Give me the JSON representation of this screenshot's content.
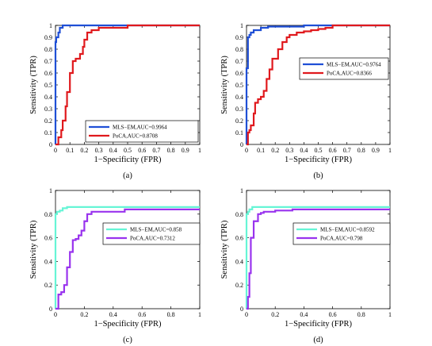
{
  "chart_data": [
    {
      "type": "line",
      "caption": "(a)",
      "xlabel": "1−Specificity (FPR)",
      "ylabel": "Sensitivity (TPR)",
      "xlim": [
        0,
        1
      ],
      "ylim": [
        0,
        1
      ],
      "xticks": [
        "0",
        "0.1",
        "0.2",
        "0.3",
        "0.4",
        "0.5",
        "0.6",
        "0.7",
        "0.8",
        "0.9",
        "1"
      ],
      "yticks": [
        "0",
        "0.1",
        "0.2",
        "0.3",
        "0.4",
        "0.5",
        "0.6",
        "0.7",
        "0.8",
        "0.9",
        "1"
      ],
      "grid": false,
      "legend_position": "bottom-right",
      "series": [
        {
          "name": "MLS−EM,AUC=0.9964",
          "color": "#1f4fd6",
          "x": [
            0,
            0,
            0.005,
            0.005,
            0.02,
            0.02,
            0.03,
            0.03,
            0.05,
            0.05,
            1
          ],
          "y": [
            0,
            0.86,
            0.86,
            0.9,
            0.9,
            0.94,
            0.94,
            0.98,
            0.98,
            1,
            1
          ]
        },
        {
          "name": "PoCA,AUC=0.8708",
          "color": "#e0191d",
          "x": [
            0,
            0.02,
            0.02,
            0.04,
            0.04,
            0.05,
            0.05,
            0.07,
            0.07,
            0.08,
            0.08,
            0.1,
            0.1,
            0.12,
            0.12,
            0.14,
            0.14,
            0.17,
            0.17,
            0.19,
            0.19,
            0.2,
            0.2,
            0.22,
            0.22,
            0.25,
            0.25,
            0.3,
            0.3,
            0.4,
            0.4,
            0.5,
            0.5,
            1
          ],
          "y": [
            0,
            0,
            0.06,
            0.06,
            0.12,
            0.12,
            0.2,
            0.2,
            0.32,
            0.32,
            0.44,
            0.44,
            0.6,
            0.6,
            0.7,
            0.7,
            0.72,
            0.72,
            0.76,
            0.76,
            0.82,
            0.82,
            0.88,
            0.88,
            0.94,
            0.94,
            0.96,
            0.96,
            0.98,
            0.98,
            0.98,
            0.98,
            1,
            1
          ]
        }
      ]
    },
    {
      "type": "line",
      "caption": "(b)",
      "xlabel": "1−Specificity (FPR)",
      "ylabel": "Sensitivity (TPR)",
      "xlim": [
        0,
        1
      ],
      "ylim": [
        0,
        1
      ],
      "xticks": [
        "0",
        "0.1",
        "0.2",
        "0.3",
        "0.4",
        "0.5",
        "0.6",
        "0.7",
        "0.8",
        "0.9",
        "1"
      ],
      "yticks": [
        "0",
        "0.1",
        "0.2",
        "0.3",
        "0.4",
        "0.5",
        "0.6",
        "0.7",
        "0.8",
        "0.9",
        "1"
      ],
      "grid": false,
      "legend_position": "top-right",
      "series": [
        {
          "name": "MLS−EM,AUC=0.9764",
          "color": "#1f4fd6",
          "x": [
            0,
            0,
            0.01,
            0.01,
            0.02,
            0.02,
            0.03,
            0.03,
            0.05,
            0.05,
            0.1,
            0.1,
            0.15,
            0.15,
            0.4,
            0.4,
            1
          ],
          "y": [
            0,
            0.64,
            0.64,
            0.9,
            0.9,
            0.92,
            0.92,
            0.94,
            0.94,
            0.96,
            0.96,
            0.98,
            0.98,
            0.99,
            0.99,
            1,
            1
          ]
        },
        {
          "name": "PoCA,AUC=0.8366",
          "color": "#e0191d",
          "x": [
            0,
            0.01,
            0.01,
            0.02,
            0.02,
            0.03,
            0.03,
            0.05,
            0.05,
            0.06,
            0.06,
            0.08,
            0.08,
            0.1,
            0.1,
            0.12,
            0.12,
            0.14,
            0.14,
            0.16,
            0.16,
            0.18,
            0.18,
            0.22,
            0.22,
            0.25,
            0.25,
            0.28,
            0.28,
            0.3,
            0.3,
            0.35,
            0.35,
            0.4,
            0.4,
            0.45,
            0.45,
            0.5,
            0.5,
            0.55,
            0.55,
            0.6,
            0.6,
            1
          ],
          "y": [
            0,
            0,
            0.1,
            0.1,
            0.12,
            0.12,
            0.16,
            0.16,
            0.26,
            0.26,
            0.35,
            0.35,
            0.38,
            0.38,
            0.4,
            0.4,
            0.45,
            0.45,
            0.55,
            0.55,
            0.63,
            0.63,
            0.72,
            0.72,
            0.8,
            0.8,
            0.86,
            0.86,
            0.9,
            0.9,
            0.92,
            0.92,
            0.94,
            0.94,
            0.95,
            0.95,
            0.96,
            0.96,
            0.97,
            0.97,
            0.98,
            0.98,
            1,
            1
          ]
        }
      ]
    },
    {
      "type": "line",
      "caption": "(c)",
      "xlabel": "1−Specificity (FPR)",
      "ylabel": "Sensitivity (TPR)",
      "xlim": [
        0,
        1
      ],
      "ylim": [
        0,
        1
      ],
      "xticks": [
        "0",
        "0.2",
        "0.4",
        "0.6",
        "0.8",
        "1"
      ],
      "yticks": [
        "0",
        "0.2",
        "0.4",
        "0.6",
        "0.8",
        "1"
      ],
      "grid": false,
      "legend_position": "center-right",
      "series": [
        {
          "name": "MLS−EM,AUC=0.858",
          "color": "#66f5d6",
          "x": [
            0,
            0,
            0.01,
            0.01,
            0.03,
            0.03,
            0.05,
            0.05,
            0.08,
            0.08,
            1
          ],
          "y": [
            0,
            0.8,
            0.8,
            0.82,
            0.82,
            0.83,
            0.83,
            0.85,
            0.85,
            0.86,
            0.86
          ]
        },
        {
          "name": "PoCA,AUC=0.7312",
          "color": "#9933ee",
          "x": [
            0,
            0.02,
            0.02,
            0.04,
            0.04,
            0.06,
            0.06,
            0.08,
            0.08,
            0.1,
            0.1,
            0.12,
            0.12,
            0.14,
            0.14,
            0.16,
            0.16,
            0.18,
            0.18,
            0.2,
            0.2,
            0.22,
            0.22,
            0.25,
            0.25,
            0.48,
            0.48,
            1
          ],
          "y": [
            0,
            0,
            0.12,
            0.12,
            0.14,
            0.14,
            0.2,
            0.2,
            0.35,
            0.35,
            0.48,
            0.48,
            0.58,
            0.58,
            0.59,
            0.59,
            0.62,
            0.62,
            0.66,
            0.66,
            0.74,
            0.74,
            0.8,
            0.8,
            0.82,
            0.82,
            0.84,
            0.84
          ]
        }
      ]
    },
    {
      "type": "line",
      "caption": "(d)",
      "xlabel": "1−Specificity (FPR)",
      "ylabel": "Sensitivity (TPR)",
      "xlim": [
        0,
        1
      ],
      "ylim": [
        0,
        1
      ],
      "xticks": [
        "0",
        "0.2",
        "0.4",
        "0.6",
        "0.8",
        "1"
      ],
      "yticks": [
        "0",
        "0.2",
        "0.4",
        "0.6",
        "0.8",
        "1"
      ],
      "grid": false,
      "legend_position": "center-right",
      "series": [
        {
          "name": "MLS−EM,AUC=0.8592",
          "color": "#66f5d6",
          "x": [
            0,
            0,
            0.01,
            0.01,
            0.02,
            0.02,
            0.04,
            0.04,
            1
          ],
          "y": [
            0,
            0.8,
            0.8,
            0.82,
            0.82,
            0.84,
            0.84,
            0.86,
            0.86
          ]
        },
        {
          "name": "PoCA,AUC=0.798",
          "color": "#9933ee",
          "x": [
            0,
            0.01,
            0.01,
            0.02,
            0.02,
            0.03,
            0.03,
            0.05,
            0.05,
            0.08,
            0.08,
            0.1,
            0.1,
            0.12,
            0.12,
            0.2,
            0.2,
            0.32,
            0.32,
            1
          ],
          "y": [
            0,
            0,
            0.1,
            0.1,
            0.3,
            0.3,
            0.6,
            0.6,
            0.74,
            0.74,
            0.8,
            0.8,
            0.81,
            0.81,
            0.82,
            0.82,
            0.83,
            0.83,
            0.84,
            0.84
          ]
        }
      ]
    }
  ]
}
